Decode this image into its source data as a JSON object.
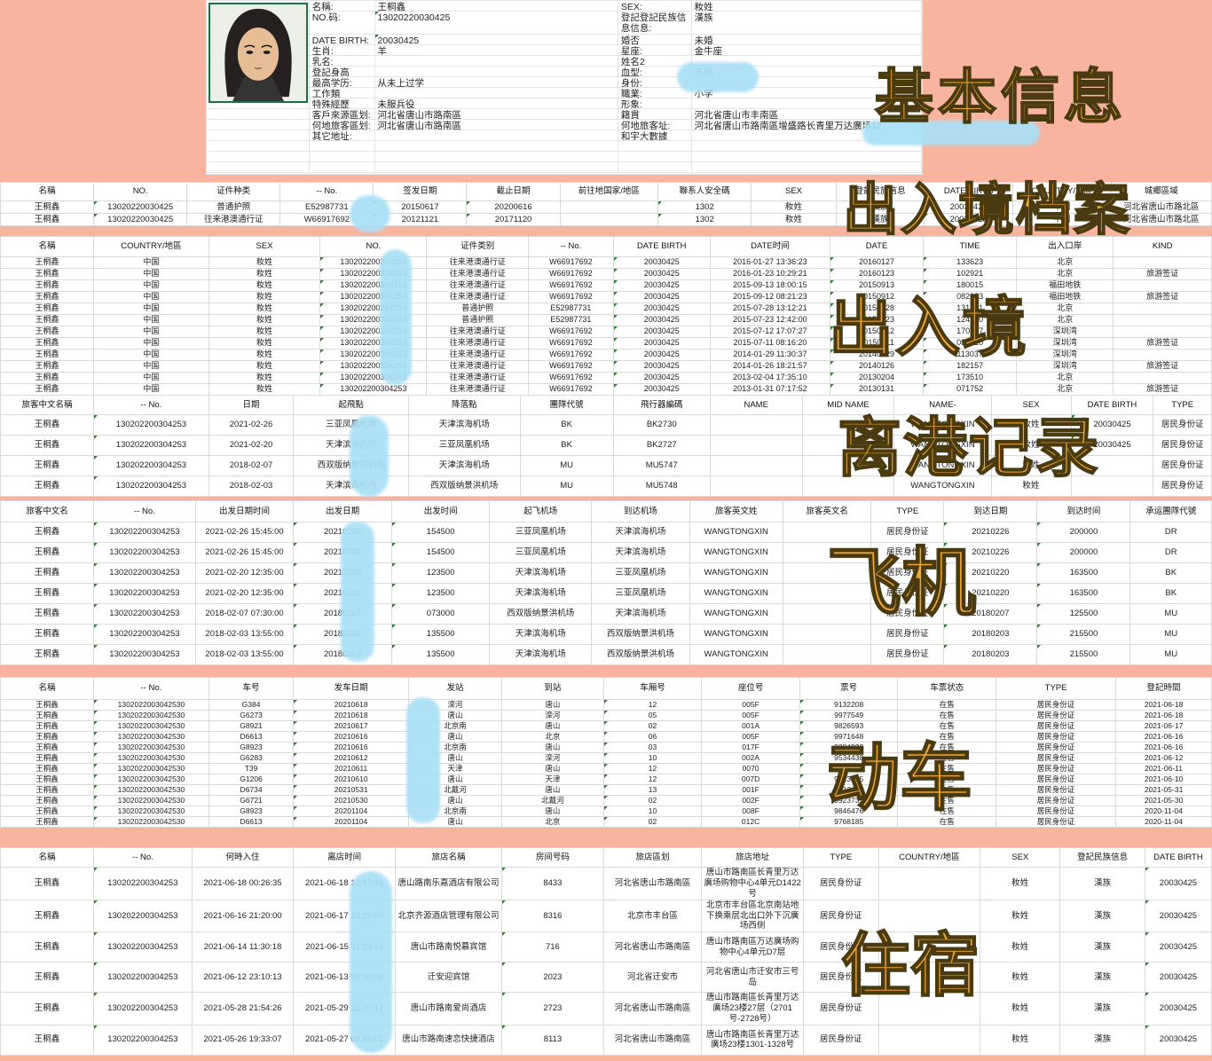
{
  "colors": {
    "background": "#f9b49f",
    "overlay_text": "#f1a832",
    "overlay_outline": "#4a3a10",
    "redaction": "#a9e0f6",
    "photo_border": "#177245",
    "flag_green": "#2e7d32"
  },
  "overlays": [
    "基本信息",
    "出入境档案",
    "出入境",
    "离港记录",
    "飞机",
    "动车",
    "住宿"
  ],
  "profile": {
    "left_fields": [
      {
        "label": "名稱:",
        "value": "王桐鑫"
      },
      {
        "label": "NO.码:",
        "value": "13020220030425",
        "flag": true
      },
      {
        "label": "DATE BIRTH:",
        "value": "20030425",
        "flag": true
      },
      {
        "label": "生肖:",
        "value": "羊"
      },
      {
        "label": "乳名:",
        "value": ""
      },
      {
        "label": "登記身高",
        "value": ""
      },
      {
        "label": "最高学历:",
        "value": "从未上过学"
      },
      {
        "label": "工作類",
        "value": ""
      },
      {
        "label": "特殊經歷",
        "value": "未服兵役"
      },
      {
        "label": "客戶來源區划:",
        "value": "河北省唐山市路南區"
      },
      {
        "label": "何地旅客區划:",
        "value": "河北省唐山市路南區"
      },
      {
        "label": "其它地址:",
        "value": ""
      }
    ],
    "right_fields": [
      {
        "label": "SEX:",
        "value": "籹姓"
      },
      {
        "label": "登記登記民族信息信息:",
        "value": "漢族"
      },
      {
        "label": "婚否",
        "value": "未婚"
      },
      {
        "label": "星座:",
        "value": "金牛座"
      },
      {
        "label": "姓名2",
        "value": ""
      },
      {
        "label": "血型:",
        "value": "不明"
      },
      {
        "label": "身份:",
        "value": ""
      },
      {
        "label": "職業:",
        "value": "小学"
      },
      {
        "label": "形象:",
        "value": ""
      },
      {
        "label": "籍貫",
        "value": "河北省唐山市丰南區"
      },
      {
        "label": "何地旅客址:",
        "value": "河北省唐山市路南區增盛路长青里万达廣场12"
      },
      {
        "label": "和宇大數據",
        "value": ""
      }
    ]
  },
  "tables": [
    {
      "id": "t1",
      "widths": [
        7.7,
        7.7,
        7.7,
        7.7,
        7.7,
        7.7,
        8.1,
        7.7,
        7.0,
        7.3,
        7.3,
        8.1,
        8.3
      ],
      "flag_cols": [
        1,
        4,
        5,
        7,
        10
      ],
      "headers": [
        "名稱",
        "NO.",
        "证件种类",
        "-- No.",
        "签发日期",
        "截止日期",
        "前往地国家/地區",
        "聯系人安全碼",
        "SEX",
        "登記民族信息",
        "DATE BIRTH",
        "COUNTRY/地區",
        "城鄉區域"
      ],
      "rows": [
        [
          "王桐鑫",
          "13020220030425",
          "普通护照",
          "E52987731",
          "20150617",
          "20200616",
          "",
          "1302",
          "籹姓",
          "漢族",
          "20030425",
          "中国",
          "河北省唐山市路北區"
        ],
        [
          "王桐鑫",
          "13020220030425",
          "往来港澳通行证",
          "W66917692",
          "20121121",
          "20171120",
          "",
          "1302",
          "籹姓",
          "漢族",
          "20030425",
          "中国",
          "河北省唐山市路北區"
        ]
      ]
    },
    {
      "id": "t2",
      "widths": [
        7.7,
        9.5,
        9.2,
        8.8,
        8.4,
        7.0,
        8.0,
        9.9,
        7.7,
        7.7,
        8.0,
        8.1
      ],
      "flag_cols": [
        3,
        6,
        8,
        9
      ],
      "headers": [
        "名稱",
        "COUNTRY/地區",
        "SEX",
        "NO.",
        "证件类别",
        "-- No.",
        "DATE BIRTH",
        "DATE时间",
        "DATE",
        "TIME",
        "出入口岸",
        "KIND"
      ],
      "rows": [
        [
          "王桐鑫",
          "中国",
          "籹姓",
          "130202200304253",
          "往来港澳通行证",
          "W66917692",
          "20030425",
          "2016-01-27 13:36:23",
          "20160127",
          "133623",
          "北京",
          ""
        ],
        [
          "王桐鑫",
          "中国",
          "籹姓",
          "130202200304253",
          "往来港澳通行证",
          "W66917692",
          "20030425",
          "2016-01-23 10:29:21",
          "20160123",
          "102921",
          "北京",
          "旅游签证"
        ],
        [
          "王桐鑫",
          "中国",
          "籹姓",
          "130202200304253",
          "往来港澳通行证",
          "W66917692",
          "20030425",
          "2015-09-13 18:00:15",
          "20150913",
          "180015",
          "福田地铁",
          ""
        ],
        [
          "王桐鑫",
          "中国",
          "籹姓",
          "130202200304253",
          "往来港澳通行证",
          "W66917692",
          "20030425",
          "2015-09-12 08:21:23",
          "20150912",
          "082123",
          "福田地铁",
          "旅游签证"
        ],
        [
          "王桐鑫",
          "中国",
          "籹姓",
          "130202200304253",
          "普通护照",
          "E52987731",
          "20030425",
          "2015-07-28 13:12:21",
          "20150728",
          "131221",
          "北京",
          ""
        ],
        [
          "王桐鑫",
          "中国",
          "籹姓",
          "130202200304253",
          "普通护照",
          "E52987731",
          "20030425",
          "2015-07-23 12:42:00",
          "20150723",
          "124200",
          "北京",
          ""
        ],
        [
          "王桐鑫",
          "中国",
          "籹姓",
          "130202200304253",
          "往来港澳通行证",
          "W66917692",
          "20030425",
          "2015-07-12 17:07:27",
          "20150712",
          "170727",
          "深圳湾",
          ""
        ],
        [
          "王桐鑫",
          "中国",
          "籹姓",
          "130202200304253",
          "往来港澳通行证",
          "W66917692",
          "20030425",
          "2015-07-11 08:16:20",
          "20150711",
          "081620",
          "深圳湾",
          "旅游签证"
        ],
        [
          "王桐鑫",
          "中国",
          "籹姓",
          "130202200304253",
          "往来港澳通行证",
          "W66917692",
          "20030425",
          "2014-01-29 11:30:37",
          "20140129",
          "113037",
          "深圳湾",
          ""
        ],
        [
          "王桐鑫",
          "中国",
          "籹姓",
          "130202200304253",
          "往来港澳通行证",
          "W66917692",
          "20030425",
          "2014-01-26 18:21:57",
          "20140126",
          "182157",
          "深圳湾",
          "旅游签证"
        ],
        [
          "王桐鑫",
          "中国",
          "籹姓",
          "130202200304253",
          "往来港澳通行证",
          "W66917692",
          "20030425",
          "2013-02-04 17:35:10",
          "20130204",
          "173510",
          "北京",
          ""
        ],
        [
          "王桐鑫",
          "中国",
          "籹姓",
          "130202200304253",
          "往来港澳通行证",
          "W66917692",
          "20030425",
          "2013-01-31 07:17:52",
          "20130131",
          "071752",
          "北京",
          "旅游签证"
        ]
      ]
    },
    {
      "id": "t3",
      "widths": [
        7.7,
        9.5,
        7.0,
        9.5,
        9.2,
        7.7,
        8.0,
        7.6,
        7.6,
        8.0,
        6.6,
        6.8,
        4.8
      ],
      "flag_cols": [
        1,
        11
      ],
      "headers": [
        "旅客中文名稱",
        "-- No.",
        "日期",
        "起飛點",
        "降落點",
        "團隊代號",
        "飛行器編碼",
        "NAME",
        "MID NAME",
        "NAME-",
        "SEX",
        "DATE BIRTH",
        "TYPE"
      ],
      "rows": [
        [
          "王桐鑫",
          "130202200304253",
          "2021-02-26",
          "三亚凤凰机场",
          "天津滨海机场",
          "BK",
          "BK2730",
          "",
          "",
          "WANGTONGXIN",
          "籹姓",
          "20030425",
          "居民身份证"
        ],
        [
          "王桐鑫",
          "130202200304253",
          "2021-02-20",
          "天津滨海机场",
          "三亚凤凰机场",
          "BK",
          "BK2727",
          "",
          "",
          "WANGTONGXIN",
          "籹姓",
          "20030425",
          "居民身份证"
        ],
        [
          "王桐鑫",
          "130202200304253",
          "2018-02-07",
          "西双版纳景洪机场",
          "天津滨海机场",
          "MU",
          "MU5747",
          "",
          "",
          "WANGTONGXIN",
          "籹姓",
          "",
          "居民身份证"
        ],
        [
          "王桐鑫",
          "130202200304253",
          "2018-02-03",
          "天津滨海机场",
          "西双版纳景洪机场",
          "MU",
          "MU5748",
          "",
          "",
          "WANGTONGXIN",
          "籹姓",
          "",
          "居民身份证"
        ]
      ]
    },
    {
      "id": "t4",
      "widths": [
        7.7,
        8.4,
        8.1,
        8.1,
        8.1,
        8.4,
        8.1,
        7.7,
        7.3,
        6.0,
        7.7,
        7.7,
        6.7
      ],
      "flag_cols": [
        1,
        3,
        4,
        10,
        11
      ],
      "headers": [
        "旅客中文名",
        "-- No.",
        "出发日期时间",
        "出发日期",
        "出发时间",
        "起飞机场",
        "到达机场",
        "旅客英文姓",
        "旅客英文名",
        "TYPE",
        "到达日期",
        "到达时间",
        "承运團隊代號"
      ],
      "rows": [
        [
          "王桐鑫",
          "130202200304253",
          "2021-02-26 15:45:00",
          "20210226",
          "154500",
          "三亚凤凰机场",
          "天津滨海机场",
          "WANGTONGXIN",
          "",
          "居民身份证",
          "20210226",
          "200000",
          "DR"
        ],
        [
          "王桐鑫",
          "130202200304253",
          "2021-02-26 15:45:00",
          "20210226",
          "154500",
          "三亚凤凰机场",
          "天津滨海机场",
          "WANGTONGXIN",
          "",
          "居民身份证",
          "20210226",
          "200000",
          "DR"
        ],
        [
          "王桐鑫",
          "130202200304253",
          "2021-02-20 12:35:00",
          "20210220",
          "123500",
          "天津滨海机场",
          "三亚凤凰机场",
          "WANGTONGXIN",
          "",
          "居民身份证",
          "20210220",
          "163500",
          "BK"
        ],
        [
          "王桐鑫",
          "130202200304253",
          "2021-02-20 12:35:00",
          "20210220",
          "123500",
          "天津滨海机场",
          "三亚凤凰机场",
          "WANGTONGXIN",
          "",
          "居民身份证",
          "20210220",
          "163500",
          "BK"
        ],
        [
          "王桐鑫",
          "130202200304253",
          "2018-02-07 07:30:00",
          "20180207",
          "073000",
          "西双版纳景洪机场",
          "天津滨海机场",
          "WANGTONGXIN",
          "",
          "居民身份证",
          "20180207",
          "125500",
          "MU"
        ],
        [
          "王桐鑫",
          "130202200304253",
          "2018-02-03 13:55:00",
          "20180203",
          "135500",
          "天津滨海机场",
          "西双版纳景洪机场",
          "WANGTONGXIN",
          "",
          "居民身份证",
          "20180203",
          "215500",
          "MU"
        ],
        [
          "王桐鑫",
          "130202200304253",
          "2018-02-03 13:55:00",
          "20180203",
          "135500",
          "天津滨海机场",
          "西双版纳景洪机场",
          "WANGTONGXIN",
          "",
          "居民身份证",
          "20180203",
          "215500",
          "MU"
        ]
      ]
    },
    {
      "id": "t5",
      "widths": [
        7.7,
        9.5,
        7.0,
        9.5,
        7.7,
        8.4,
        8.1,
        8.1,
        8.1,
        8.1,
        9.9,
        7.9
      ],
      "flag_cols": [
        1,
        3,
        6,
        8
      ],
      "headers": [
        "名稱",
        "-- No.",
        "车号",
        "发车日期",
        "发站",
        "到站",
        "车厢号",
        "座位号",
        "票号",
        "车票状态",
        "TYPE",
        "登記時間"
      ],
      "rows": [
        [
          "王桐鑫",
          "1302022003042530",
          "G384",
          "20210618",
          "滦河",
          "唐山",
          "12",
          "005F",
          "9132208",
          "在售",
          "居民身份证",
          "2021-06-18"
        ],
        [
          "王桐鑫",
          "1302022003042530",
          "G6273",
          "20210618",
          "唐山",
          "滦河",
          "05",
          "005F",
          "9977549",
          "在售",
          "居民身份证",
          "2021-06-18"
        ],
        [
          "王桐鑫",
          "1302022003042530",
          "G8921",
          "20210617",
          "北京南",
          "唐山",
          "02",
          "001A",
          "9826593",
          "在售",
          "居民身份证",
          "2021-06-17"
        ],
        [
          "王桐鑫",
          "1302022003042530",
          "D6613",
          "20210616",
          "唐山",
          "北京",
          "06",
          "005F",
          "9971648",
          "在售",
          "居民身份证",
          "2021-06-16"
        ],
        [
          "王桐鑫",
          "1302022003042530",
          "G8923",
          "20210616",
          "北京南",
          "唐山",
          "03",
          "017F",
          "9804923",
          "在售",
          "居民身份证",
          "2021-06-16"
        ],
        [
          "王桐鑫",
          "1302022003042530",
          "G6283",
          "20210612",
          "唐山",
          "滦河",
          "10",
          "002A",
          "9534438",
          "在售",
          "居民身份证",
          "2021-06-12"
        ],
        [
          "王桐鑫",
          "1302022003042530",
          "T39",
          "20210611",
          "天津",
          "唐山",
          "12",
          "0070",
          "9572292",
          "在售",
          "居民身份证",
          "2021-06-11"
        ],
        [
          "王桐鑫",
          "1302022003042530",
          "G1206",
          "20210610",
          "唐山",
          "天津",
          "12",
          "007D",
          "9923955",
          "在售",
          "居民身份证",
          "2021-06-10"
        ],
        [
          "王桐鑫",
          "1302022003042530",
          "D6734",
          "20210531",
          "北戴河",
          "唐山",
          "13",
          "001F",
          "9912611",
          "在售",
          "居民身份证",
          "2021-05-31"
        ],
        [
          "王桐鑫",
          "1302022003042530",
          "G6721",
          "20210530",
          "唐山",
          "北戴河",
          "02",
          "002F",
          "9923735",
          "在售",
          "居民身份证",
          "2021-05-30"
        ],
        [
          "王桐鑫",
          "1302022003042530",
          "G8923",
          "20201104",
          "北京南",
          "唐山",
          "10",
          "008F",
          "9846476",
          "在售",
          "居民身份证",
          "2020-11-04"
        ],
        [
          "王桐鑫",
          "1302022003042530",
          "D6613",
          "20201104",
          "唐山",
          "北京",
          "02",
          "012C",
          "9768185",
          "在售",
          "居民身份证",
          "2020-11-04"
        ]
      ]
    },
    {
      "id": "t6",
      "widths": [
        7.7,
        8.1,
        8.4,
        8.4,
        8.8,
        8.4,
        8.1,
        8.4,
        6.2,
        8.4,
        6.6,
        7.0,
        5.5
      ],
      "flag_cols": [
        1,
        5,
        12
      ],
      "headers": [
        "名稱",
        "-- No.",
        "何時入住",
        "离店时间",
        "旅店名稱",
        "房间号码",
        "旅店區划",
        "旅店地址",
        "TYPE",
        "COUNTRY/地區",
        "SEX",
        "登記民族信息",
        "DATE BIRTH"
      ],
      "rows": [
        [
          "王桐鑫",
          "130202200304253",
          "2021-06-18 00:26:35",
          "2021-06-18 12:17:46",
          "唐山路南乐嘉酒店有限公司",
          "8433",
          "河北省唐山市路南區",
          "唐山市路南區长青里万达廣场购物中心4单元D1422号",
          "居民身份证",
          "",
          "籹姓",
          "漢族",
          "20030425"
        ],
        [
          "王桐鑫",
          "130202200304253",
          "2021-06-16 21:20:00",
          "2021-06-17 10:20:00",
          "北京齐源酒店管理有限公司",
          "8316",
          "北京市丰台區",
          "北京市丰台區北京南站地下换乘层北出口外下沉廣场西侧",
          "居民身份证",
          "",
          "籹姓",
          "漢族",
          "20030425"
        ],
        [
          "王桐鑫",
          "130202200304253",
          "2021-06-14 11:30:18",
          "2021-06-15 11:29:10",
          "唐山市路南悦慕宾馆",
          "716",
          "河北省唐山市路南區",
          "唐山市路南區万达廣场购物中心4单元D7层",
          "居民身份证",
          "",
          "籹姓",
          "漢族",
          "20030425"
        ],
        [
          "王桐鑫",
          "130202200304253",
          "2021-06-12 23:10:13",
          "2021-06-13 09:39:06",
          "迁安迎宾馆",
          "2023",
          "河北省迁安市",
          "河北省唐山市迁安市三号岛",
          "居民身份证",
          "",
          "籹姓",
          "漢族",
          "20030425"
        ],
        [
          "王桐鑫",
          "130202200304253",
          "2021-05-28 21:54:26",
          "2021-05-29 12:37:12",
          "唐山市路南爱尚酒店",
          "2723",
          "河北省唐山市路南區",
          "唐山市路南區长青里万达廣场23楼27层（2701号-2728号）",
          "居民身份证",
          "",
          "籹姓",
          "漢族",
          "20030425"
        ],
        [
          "王桐鑫",
          "130202200304253",
          "2021-05-26 19:33:07",
          "2021-05-27 09:45:01",
          "唐山市路南速恋快捷酒店",
          "8113",
          "河北省唐山市路南區",
          "唐山市路南區长青里万达廣场23楼1301-1328号",
          "居民身份证",
          "",
          "籹姓",
          "漢族",
          "20030425"
        ]
      ]
    }
  ]
}
